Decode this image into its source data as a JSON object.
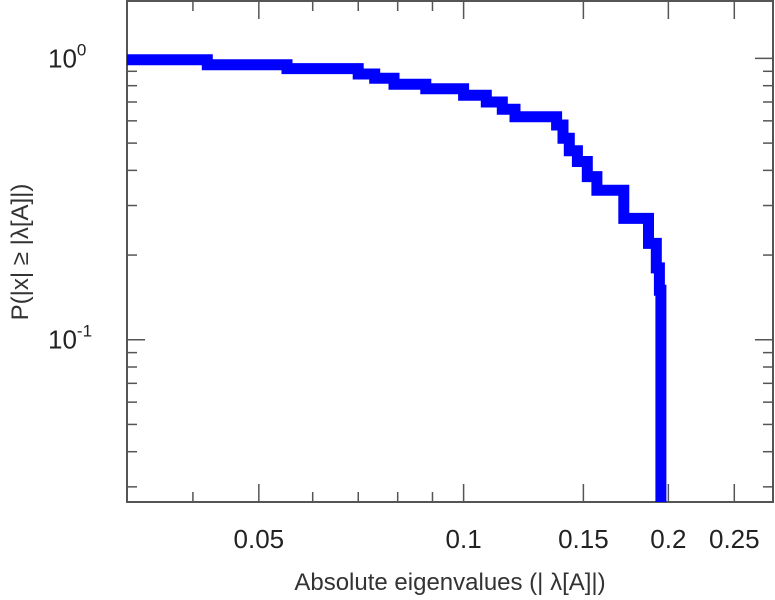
{
  "chart_data": {
    "type": "line",
    "xlabel": "Absolute eigenvalues (|     λ[A]|)",
    "ylabel": "P(|x|  ≥ |λ[A]|)",
    "x_scale": "log",
    "y_scale": "log",
    "xlim": [
      0.032,
      0.285
    ],
    "ylim": [
      0.0265,
      1.6
    ],
    "x_ticks": [
      {
        "value": 0.05,
        "label": "0.05"
      },
      {
        "value": 0.1,
        "label": "0.1"
      },
      {
        "value": 0.15,
        "label": "0.15"
      },
      {
        "value": 0.2,
        "label": "0.2"
      },
      {
        "value": 0.25,
        "label": "0.25"
      }
    ],
    "y_ticks": [
      {
        "value": 1,
        "base": "10",
        "exp": "0"
      },
      {
        "value": 0.1,
        "base": "10",
        "exp": "-1"
      }
    ],
    "grid": false,
    "series": [
      {
        "color": "#0000ff",
        "points": [
          [
            0.032,
            0.99
          ],
          [
            0.042,
            0.99
          ],
          [
            0.042,
            0.95
          ],
          [
            0.055,
            0.95
          ],
          [
            0.055,
            0.92
          ],
          [
            0.07,
            0.92
          ],
          [
            0.07,
            0.88
          ],
          [
            0.074,
            0.88
          ],
          [
            0.074,
            0.85
          ],
          [
            0.079,
            0.85
          ],
          [
            0.079,
            0.81
          ],
          [
            0.088,
            0.81
          ],
          [
            0.088,
            0.78
          ],
          [
            0.1,
            0.78
          ],
          [
            0.1,
            0.74
          ],
          [
            0.108,
            0.74
          ],
          [
            0.108,
            0.7
          ],
          [
            0.114,
            0.7
          ],
          [
            0.114,
            0.66
          ],
          [
            0.119,
            0.66
          ],
          [
            0.119,
            0.62
          ],
          [
            0.137,
            0.62
          ],
          [
            0.137,
            0.58
          ],
          [
            0.14,
            0.58
          ],
          [
            0.14,
            0.52
          ],
          [
            0.143,
            0.52
          ],
          [
            0.143,
            0.47
          ],
          [
            0.147,
            0.47
          ],
          [
            0.147,
            0.43
          ],
          [
            0.152,
            0.43
          ],
          [
            0.152,
            0.38
          ],
          [
            0.157,
            0.38
          ],
          [
            0.157,
            0.34
          ],
          [
            0.172,
            0.34
          ],
          [
            0.172,
            0.27
          ],
          [
            0.187,
            0.27
          ],
          [
            0.187,
            0.22
          ],
          [
            0.192,
            0.22
          ],
          [
            0.192,
            0.18
          ],
          [
            0.194,
            0.18
          ],
          [
            0.194,
            0.15
          ],
          [
            0.195,
            0.15
          ],
          [
            0.195,
            0.0265
          ]
        ]
      }
    ]
  }
}
